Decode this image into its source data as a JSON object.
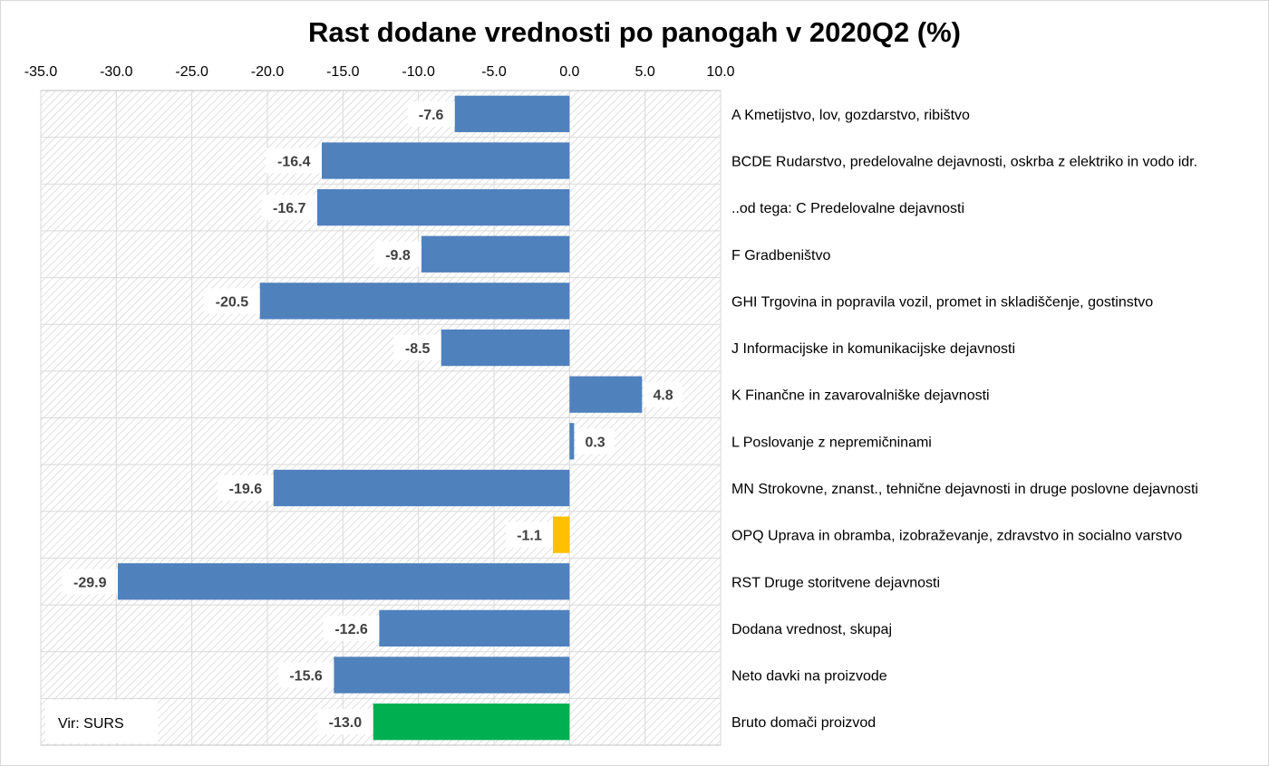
{
  "chart_data": {
    "type": "bar",
    "orientation": "horizontal",
    "title": "Rast dodane vrednosti po panogah v 2020Q2 (%)",
    "xlim": [
      -35,
      10
    ],
    "x_ticks": [
      "-35.0",
      "-30.0",
      "-25.0",
      "-20.0",
      "-15.0",
      "-10.0",
      "-5.0",
      "0.0",
      "5.0",
      "10.0"
    ],
    "x_tick_values": [
      -35,
      -30,
      -25,
      -20,
      -15,
      -10,
      -5,
      0,
      5,
      10
    ],
    "grid": true,
    "categories": [
      "A Kmetijstvo, lov, gozdarstvo, ribištvo",
      "BCDE Rudarstvo, predelovalne dejavnosti, oskrba z elektriko in vodo idr.",
      "..od tega: C Predelovalne dejavnosti",
      "F Gradbeništvo",
      "GHI Trgovina in popravila vozil, promet in skladiščenje, gostinstvo",
      "J Informacijske in komunikacijske dejavnosti",
      "K Finančne in zavarovalniške dejavnosti",
      "L Poslovanje z nepremičninami",
      "MN Strokovne, znanst., tehnične dejavnosti in druge poslovne dejavnosti",
      "OPQ Uprava in obramba, izobraževanje, zdravstvo in socialno varstvo",
      "RST Druge storitvene dejavnosti",
      "Dodana vrednost, skupaj",
      "Neto davki na proizvode",
      "Bruto domači proizvod"
    ],
    "values": [
      -7.6,
      -16.4,
      -16.7,
      -9.8,
      -20.5,
      -8.5,
      4.8,
      0.3,
      -19.6,
      -1.1,
      -29.9,
      -12.6,
      -15.6,
      -13.0
    ],
    "value_labels": [
      "-7.6",
      "-16.4",
      "-16.7",
      "-9.8",
      "-20.5",
      "-8.5",
      "4.8",
      "0.3",
      "-19.6",
      "-1.1",
      "-29.9",
      "-12.6",
      "-15.6",
      "-13.0"
    ],
    "bar_colors": [
      "#4f81bd",
      "#4f81bd",
      "#4f81bd",
      "#4f81bd",
      "#4f81bd",
      "#4f81bd",
      "#4f81bd",
      "#4f81bd",
      "#4f81bd",
      "#ffc000",
      "#4f81bd",
      "#4f81bd",
      "#4f81bd",
      "#00b050"
    ],
    "source_note": "Vir: SURS"
  }
}
